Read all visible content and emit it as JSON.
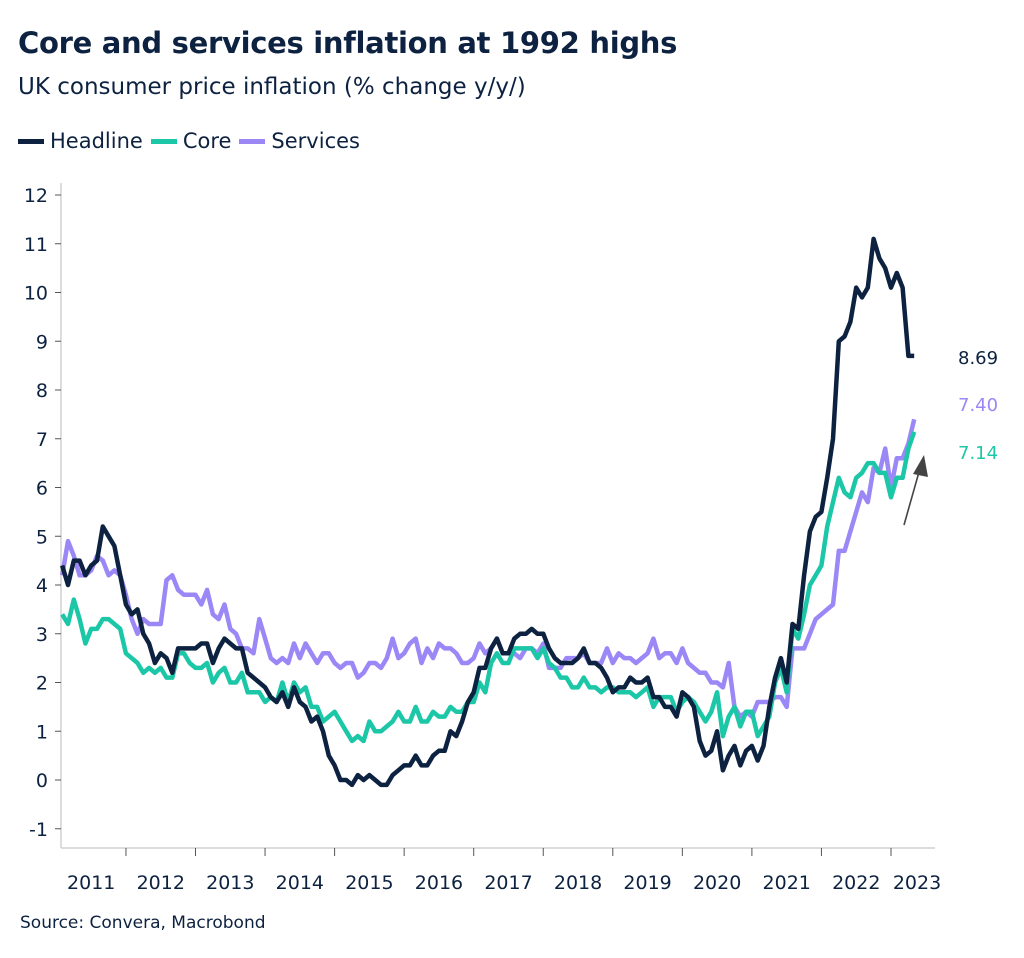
{
  "chart_data": {
    "type": "line",
    "title": "Core and services inflation at 1992 highs",
    "subtitle": "UK consumer price inflation (% change y/y/)",
    "source": "Source: Convera, Macrobond",
    "x_start": "2011-02",
    "x_frequency": "monthly",
    "x_tick_labels": [
      "2011",
      "2012",
      "2013",
      "2014",
      "2015",
      "2016",
      "2017",
      "2018",
      "2019",
      "2020",
      "2021",
      "2022",
      "2023"
    ],
    "ylim": [
      -1.3,
      12.2
    ],
    "y_ticks": [
      -1,
      0,
      1,
      2,
      3,
      4,
      5,
      6,
      7,
      8,
      9,
      10,
      11,
      12
    ],
    "grid": false,
    "legend": "top-left",
    "series": [
      {
        "name": "Headline",
        "color": "#0d2240",
        "end_label": "8.69",
        "values": [
          4.4,
          4.0,
          4.5,
          4.5,
          4.2,
          4.4,
          4.5,
          5.2,
          5.0,
          4.8,
          4.2,
          3.6,
          3.4,
          3.5,
          3.0,
          2.8,
          2.4,
          2.6,
          2.5,
          2.2,
          2.7,
          2.7,
          2.7,
          2.7,
          2.8,
          2.8,
          2.4,
          2.7,
          2.9,
          2.8,
          2.7,
          2.7,
          2.2,
          2.1,
          2.0,
          1.9,
          1.7,
          1.6,
          1.8,
          1.5,
          1.9,
          1.6,
          1.5,
          1.2,
          1.3,
          1.0,
          0.5,
          0.3,
          0.0,
          0.0,
          -0.1,
          0.1,
          0.0,
          0.1,
          0.0,
          -0.1,
          -0.1,
          0.1,
          0.2,
          0.3,
          0.3,
          0.5,
          0.3,
          0.3,
          0.5,
          0.6,
          0.6,
          1.0,
          0.9,
          1.2,
          1.6,
          1.8,
          2.3,
          2.3,
          2.7,
          2.9,
          2.6,
          2.6,
          2.9,
          3.0,
          3.0,
          3.1,
          3.0,
          3.0,
          2.7,
          2.5,
          2.4,
          2.4,
          2.4,
          2.5,
          2.7,
          2.4,
          2.4,
          2.3,
          2.1,
          1.8,
          1.9,
          1.9,
          2.1,
          2.0,
          2.0,
          2.1,
          1.7,
          1.7,
          1.5,
          1.5,
          1.3,
          1.8,
          1.7,
          1.5,
          0.8,
          0.5,
          0.6,
          1.0,
          0.2,
          0.5,
          0.7,
          0.3,
          0.6,
          0.7,
          0.4,
          0.7,
          1.5,
          2.1,
          2.5,
          2.0,
          3.2,
          3.1,
          4.2,
          5.1,
          5.4,
          5.5,
          6.2,
          7.0,
          9.0,
          9.1,
          9.4,
          10.1,
          9.9,
          10.1,
          11.1,
          10.7,
          10.5,
          10.1,
          10.4,
          10.1,
          8.7,
          8.7
        ]
      },
      {
        "name": "Core",
        "color": "#1cc7a8",
        "end_label": "7.14",
        "values": [
          3.4,
          3.2,
          3.7,
          3.3,
          2.8,
          3.1,
          3.1,
          3.3,
          3.3,
          3.2,
          3.1,
          2.6,
          2.5,
          2.4,
          2.2,
          2.3,
          2.2,
          2.3,
          2.1,
          2.1,
          2.6,
          2.6,
          2.4,
          2.3,
          2.3,
          2.4,
          2.0,
          2.2,
          2.3,
          2.0,
          2.0,
          2.2,
          1.8,
          1.8,
          1.8,
          1.6,
          1.7,
          1.6,
          2.0,
          1.6,
          2.0,
          1.8,
          1.9,
          1.5,
          1.5,
          1.2,
          1.3,
          1.4,
          1.2,
          1.0,
          0.8,
          0.9,
          0.8,
          1.2,
          1.0,
          1.0,
          1.1,
          1.2,
          1.4,
          1.2,
          1.2,
          1.5,
          1.2,
          1.2,
          1.4,
          1.3,
          1.3,
          1.5,
          1.4,
          1.4,
          1.6,
          1.6,
          2.0,
          1.8,
          2.4,
          2.6,
          2.4,
          2.4,
          2.7,
          2.7,
          2.7,
          2.7,
          2.5,
          2.7,
          2.4,
          2.3,
          2.1,
          2.1,
          1.9,
          1.9,
          2.1,
          1.9,
          1.9,
          1.8,
          1.9,
          1.9,
          1.8,
          1.8,
          1.8,
          1.7,
          1.8,
          1.9,
          1.5,
          1.7,
          1.7,
          1.7,
          1.4,
          1.6,
          1.7,
          1.6,
          1.4,
          1.2,
          1.4,
          1.8,
          0.9,
          1.3,
          1.5,
          1.1,
          1.4,
          1.4,
          0.9,
          1.1,
          1.3,
          2.0,
          2.3,
          1.8,
          3.1,
          2.9,
          3.4,
          4.0,
          4.2,
          4.4,
          5.2,
          5.7,
          6.2,
          5.9,
          5.8,
          6.2,
          6.3,
          6.5,
          6.5,
          6.3,
          6.3,
          5.8,
          6.2,
          6.2,
          6.8,
          7.14
        ]
      },
      {
        "name": "Services",
        "color": "#9b87f5",
        "end_label": "7.40",
        "values": [
          4.2,
          4.9,
          4.6,
          4.2,
          4.2,
          4.3,
          4.6,
          4.5,
          4.2,
          4.3,
          4.2,
          3.8,
          3.3,
          3.0,
          3.3,
          3.2,
          3.2,
          3.2,
          4.1,
          4.2,
          3.9,
          3.8,
          3.8,
          3.8,
          3.6,
          3.9,
          3.4,
          3.3,
          3.6,
          3.1,
          3.0,
          2.7,
          2.7,
          2.6,
          3.3,
          2.9,
          2.5,
          2.4,
          2.5,
          2.4,
          2.8,
          2.5,
          2.8,
          2.6,
          2.4,
          2.6,
          2.6,
          2.4,
          2.3,
          2.4,
          2.4,
          2.1,
          2.2,
          2.4,
          2.4,
          2.3,
          2.5,
          2.9,
          2.5,
          2.6,
          2.8,
          2.9,
          2.4,
          2.7,
          2.5,
          2.8,
          2.7,
          2.7,
          2.6,
          2.4,
          2.4,
          2.5,
          2.8,
          2.6,
          2.7,
          2.9,
          2.6,
          2.6,
          2.6,
          2.5,
          2.7,
          2.7,
          2.6,
          2.8,
          2.3,
          2.3,
          2.3,
          2.5,
          2.5,
          2.5,
          2.6,
          2.4,
          2.4,
          2.4,
          2.7,
          2.4,
          2.6,
          2.5,
          2.5,
          2.4,
          2.5,
          2.6,
          2.9,
          2.5,
          2.6,
          2.6,
          2.4,
          2.7,
          2.4,
          2.3,
          2.2,
          2.2,
          2.0,
          2.0,
          1.9,
          2.4,
          1.5,
          1.3,
          1.4,
          1.3,
          1.6,
          1.6,
          1.6,
          1.7,
          1.7,
          1.5,
          2.7,
          2.7,
          2.7,
          3.0,
          3.3,
          3.4,
          3.5,
          3.6,
          4.7,
          4.7,
          5.1,
          5.5,
          5.9,
          5.7,
          6.4,
          6.3,
          6.8,
          6.0,
          6.6,
          6.6,
          6.9,
          7.4
        ]
      }
    ],
    "annotations": [
      {
        "type": "arrow",
        "direction": "up"
      }
    ]
  }
}
